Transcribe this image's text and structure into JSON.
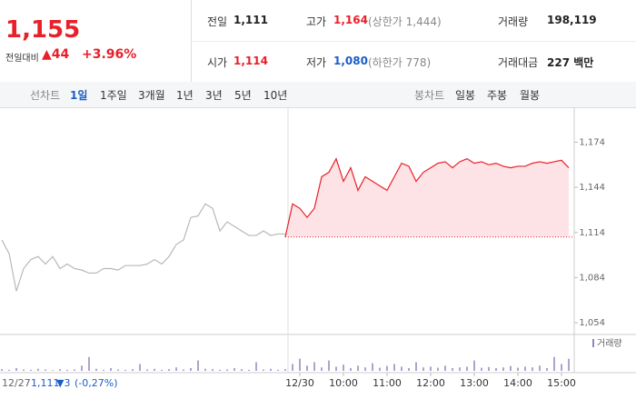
{
  "header": {
    "price": "1,155",
    "change_label": "전일대비",
    "change": "▲44",
    "change_rate": "+3.96%",
    "stats": [
      {
        "label": "전일",
        "value": "1,111",
        "color": "#222222"
      },
      {
        "label": "고가",
        "value": "1,164",
        "note": "(상한가 1,444)",
        "color": "#e8202a"
      },
      {
        "label": "거래량",
        "value": "198,119",
        "color": "#222222"
      },
      {
        "label": "시가",
        "value": "1,114",
        "color": "#e8202a"
      },
      {
        "label": "저가",
        "value": "1,080",
        "note": "(하한가 778)",
        "color": "#1a5dc8"
      },
      {
        "label": "거래대금",
        "value": "227 백만",
        "color": "#222222"
      }
    ]
  },
  "tabs": {
    "line_label": "선차트",
    "line": [
      "1일",
      "1주일",
      "3개월",
      "1년",
      "3년",
      "5년",
      "10년"
    ],
    "candle_label": "봉차트",
    "candle": [
      "일봉",
      "주봉",
      "월봉"
    ]
  },
  "chart_data": {
    "type": "line",
    "categories": [
      null,
      null,
      null,
      null,
      null,
      null,
      null,
      null,
      null,
      null,
      null,
      null,
      null,
      null,
      null,
      null,
      null,
      null,
      null,
      null,
      null,
      null,
      null,
      null,
      null,
      null,
      null,
      null,
      null,
      null,
      null,
      null,
      null,
      null,
      null,
      null,
      null,
      null,
      null,
      null,
      null,
      "12/30",
      null,
      null,
      null,
      null,
      null,
      "10:00",
      null,
      null,
      null,
      null,
      null,
      "11:00",
      null,
      null,
      null,
      null,
      null,
      "12:00",
      null,
      null,
      null,
      null,
      null,
      "13:00",
      null,
      null,
      null,
      null,
      null,
      "14:00",
      null,
      null,
      null,
      null,
      null,
      "15:00",
      null
    ],
    "series": [
      {
        "color": "#b8b8b8",
        "values": [
          1109,
          1100,
          1075,
          1090,
          1096,
          1098,
          1093,
          1098,
          1090,
          1093,
          1090,
          1089,
          1087,
          1087,
          1090,
          1090,
          1089,
          1092,
          1092,
          1092,
          1093,
          1096,
          1093,
          1098,
          1106,
          1109,
          1124,
          1125,
          1133,
          1130,
          1115,
          1121,
          1118,
          1115,
          1112,
          1112,
          1115,
          1112,
          1113,
          1113,
          null,
          null,
          null,
          null,
          null,
          null,
          null,
          null,
          null,
          null,
          null,
          null,
          null,
          null,
          null,
          null,
          null,
          null,
          null,
          null,
          null,
          null,
          null,
          null,
          null,
          null,
          null,
          null,
          null,
          null,
          null,
          null,
          null,
          null,
          null,
          null,
          null,
          null,
          null
        ]
      },
      {
        "color": "#e8202a",
        "values": [
          null,
          null,
          null,
          null,
          null,
          null,
          null,
          null,
          null,
          null,
          null,
          null,
          null,
          null,
          null,
          null,
          null,
          null,
          null,
          null,
          null,
          null,
          null,
          null,
          null,
          null,
          null,
          null,
          null,
          null,
          null,
          null,
          null,
          null,
          null,
          null,
          null,
          null,
          null,
          1111,
          1133,
          1130,
          1124,
          1130,
          1151,
          1154,
          1163,
          1148,
          1157,
          1142,
          1151,
          1148,
          1145,
          1142,
          1151,
          1160,
          1158,
          1148,
          1154,
          1157,
          1160,
          1161,
          1157,
          1161,
          1163,
          1160,
          1161,
          1159,
          1160,
          1158,
          1157,
          1158,
          1158,
          1160,
          1161,
          1160,
          1161,
          1162,
          1157
        ]
      }
    ],
    "baseline": 1111,
    "ylim": [
      1048,
      1193
    ],
    "yticks": [
      {
        "value": 1054,
        "label": "1,054"
      },
      {
        "value": 1084,
        "label": "1,084"
      },
      {
        "value": 1114,
        "label": "1,114"
      },
      {
        "value": 1144,
        "label": "1,144"
      },
      {
        "value": 1174,
        "label": "1,174"
      }
    ],
    "volume": {
      "name": "거래량",
      "color": "#8f86c2",
      "ylim": [
        0,
        100
      ],
      "values": [
        5,
        3,
        8,
        4,
        3,
        6,
        4,
        2,
        5,
        3,
        4,
        15,
        40,
        6,
        3,
        8,
        4,
        3,
        5,
        20,
        4,
        6,
        3,
        5,
        10,
        4,
        8,
        30,
        6,
        5,
        3,
        4,
        8,
        5,
        3,
        25,
        4,
        6,
        3,
        5,
        20,
        35,
        15,
        25,
        10,
        30,
        12,
        18,
        8,
        15,
        10,
        22,
        9,
        14,
        20,
        12,
        8,
        25,
        10,
        12,
        9,
        15,
        8,
        10,
        12,
        30,
        9,
        11,
        8,
        10,
        14,
        9,
        12,
        10,
        15,
        8,
        40,
        20,
        35
      ]
    },
    "prev_day": {
      "date": "12/27",
      "close": "1,111",
      "change": "▼3",
      "rate": "(-0,27%)"
    }
  }
}
